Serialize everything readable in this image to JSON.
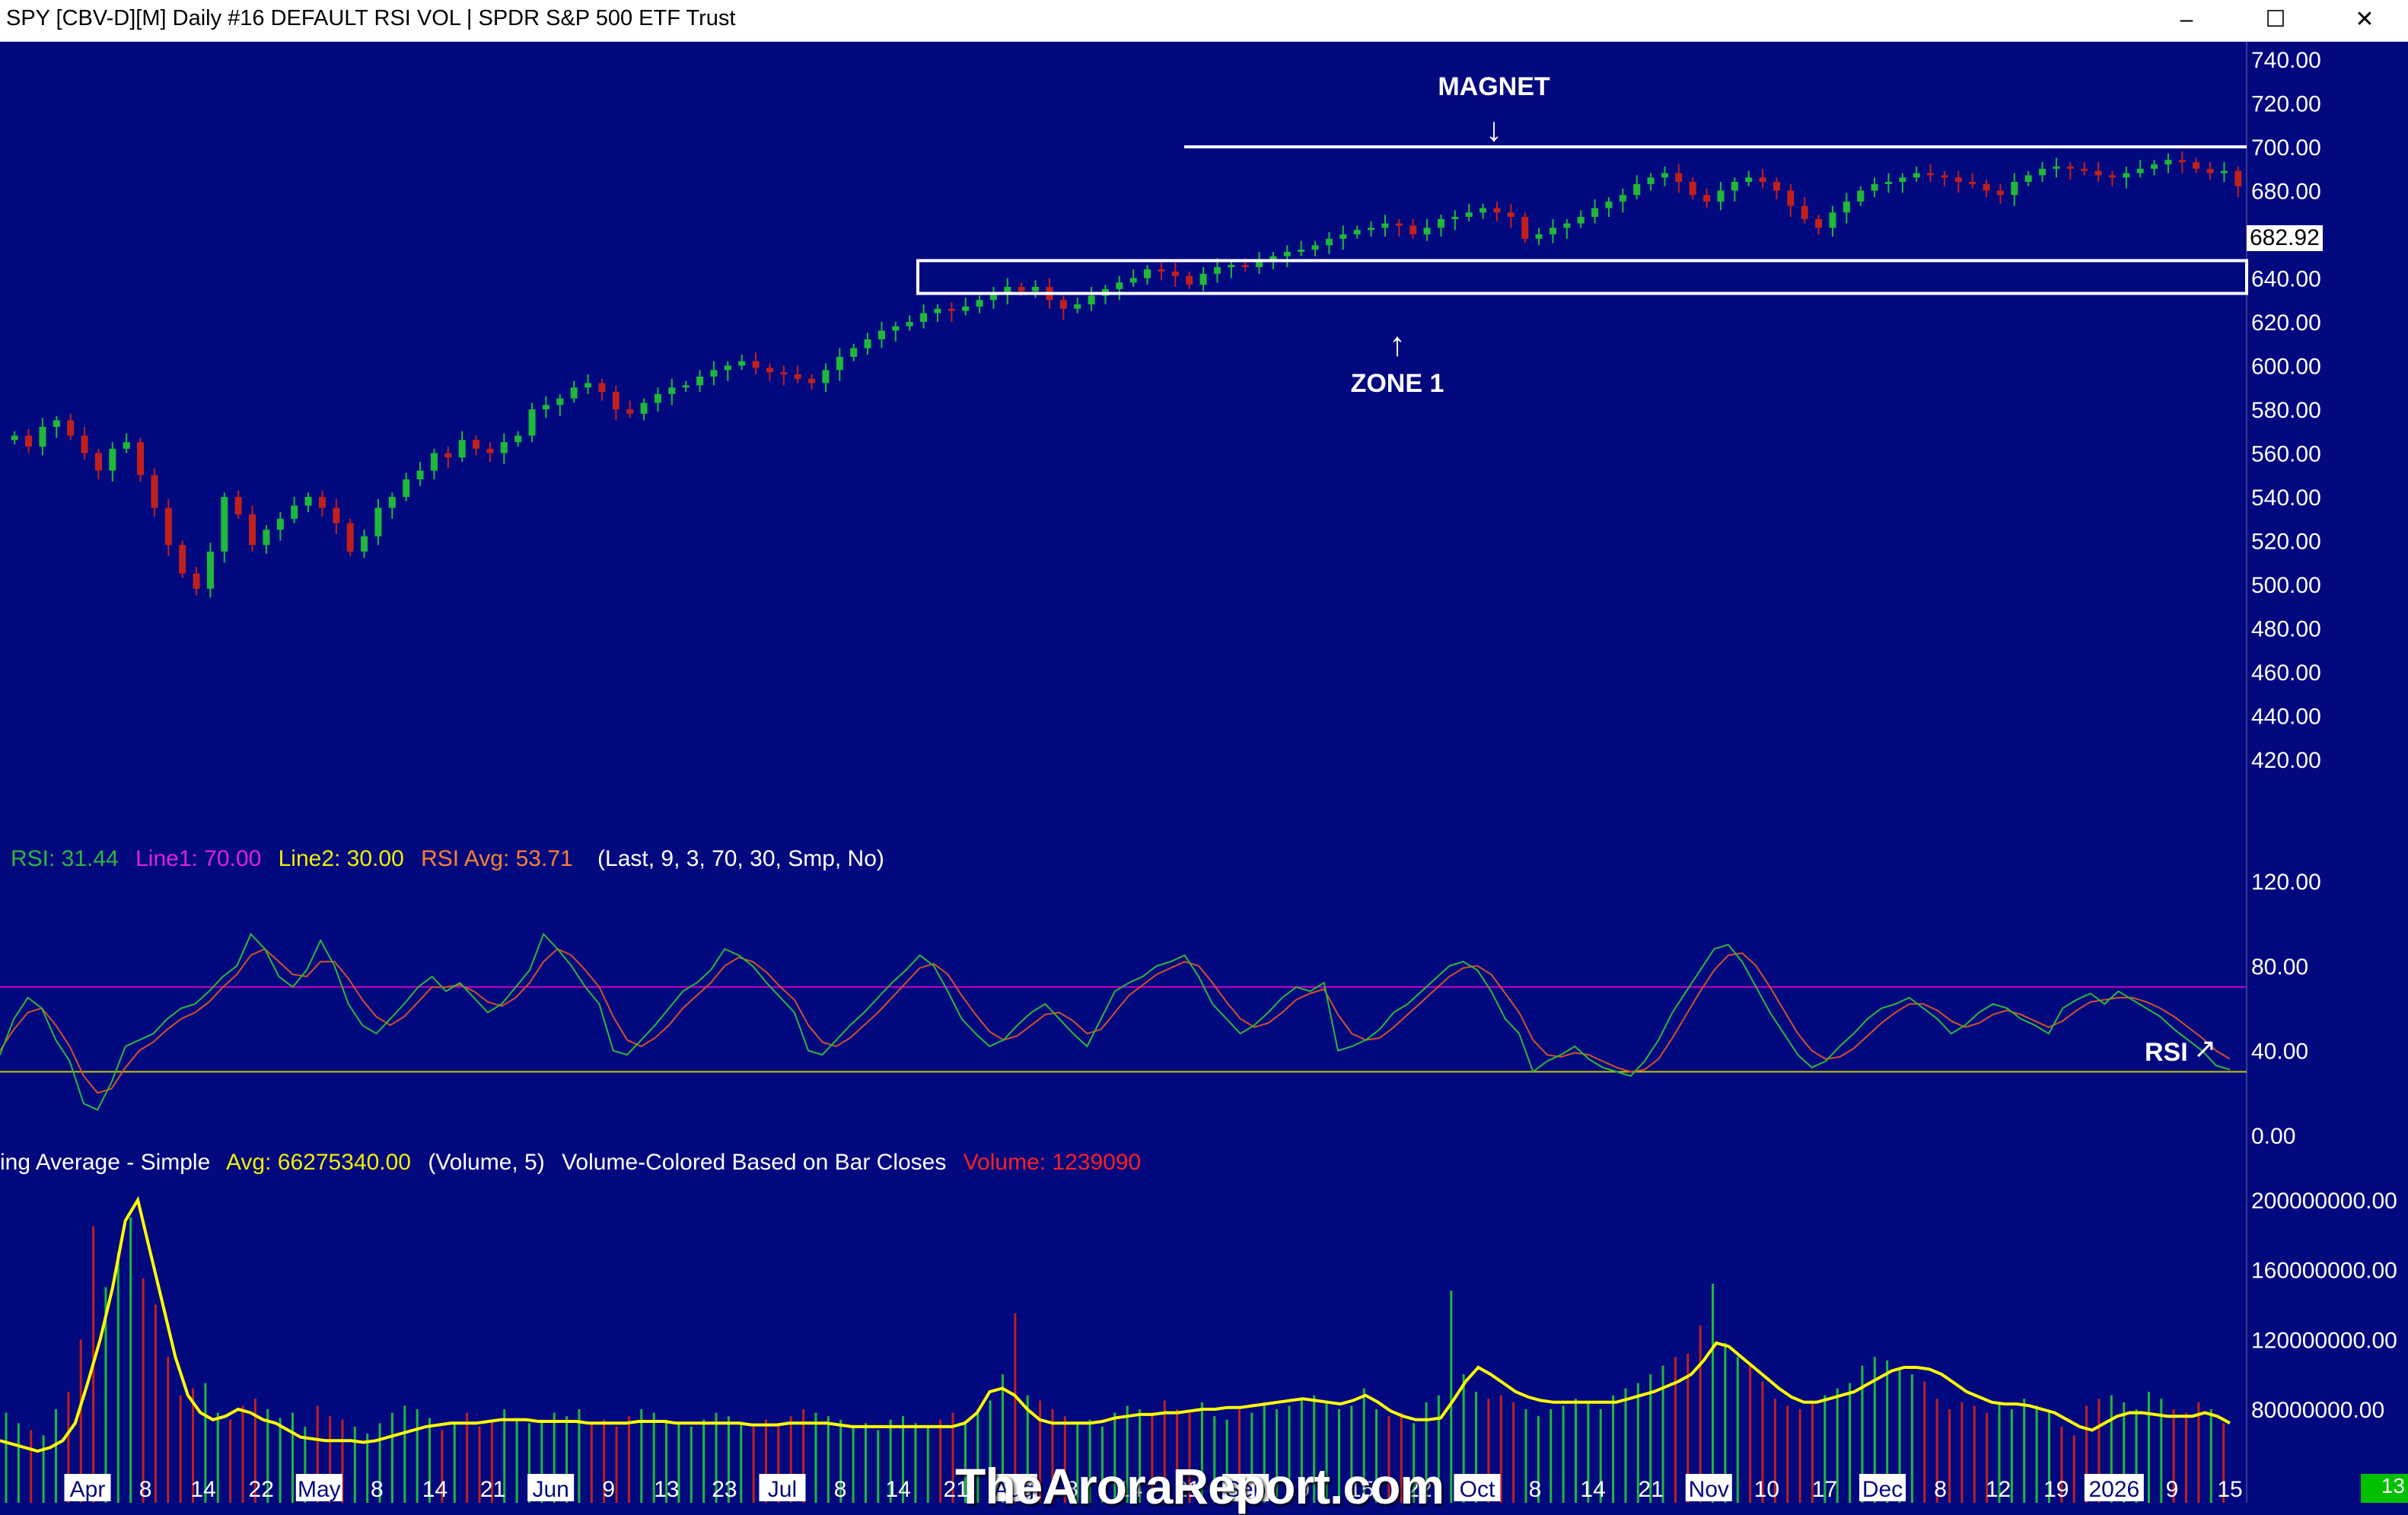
{
  "window": {
    "title": "SPY [CBV-D][M]  Daily #16 DEFAULT RSI VOL | SPDR S&P 500 ETF Trust",
    "buttons": {
      "minimize": "–",
      "maximize": "☐",
      "close": "✕"
    }
  },
  "colors": {
    "background": "#02097f",
    "up": "#1fb83a",
    "down": "#c0201c",
    "rsi": "#2db83a",
    "rsi_avg": "#d2502a",
    "line1": "#c000c0",
    "line2": "#c8c800",
    "vol_avg": "#ffff00"
  },
  "price_panel": {
    "last_price": "682.92",
    "annotations": {
      "magnet": "MAGNET",
      "zone1": "ZONE 1"
    }
  },
  "rsi_panel": {
    "legend": {
      "rsi": "RSI: 31.44",
      "line1": "Line1: 70.00",
      "line2": "Line2: 30.00",
      "avg": "RSI Avg: 53.71",
      "params": "(Last, 9, 3, 70, 30, Smp, No)"
    },
    "label": "RSI"
  },
  "volume_panel": {
    "legend": {
      "name": "ing Average - Simple",
      "avg": "Avg: 66275340.00",
      "params": "(Volume, 5)",
      "desc": "Volume-Colored Based on Bar Closes",
      "vol": "Volume: 1239090"
    }
  },
  "watermark": "TheAroraReport.com",
  "corner_label": "13",
  "chart_data": [
    {
      "type": "candlestick",
      "name": "SPY daily",
      "y_ticks": [
        "740.00",
        "720.00",
        "700.00",
        "680.00",
        "660.00",
        "640.00",
        "620.00",
        "600.00",
        "580.00",
        "560.00",
        "540.00",
        "520.00",
        "500.00",
        "480.00",
        "460.00",
        "440.00",
        "420.00"
      ],
      "ylim": [
        410,
        746
      ],
      "x_labels": [
        {
          "t": "Apr",
          "month": true
        },
        {
          "t": "8"
        },
        {
          "t": "14"
        },
        {
          "t": "22"
        },
        {
          "t": "May",
          "month": true
        },
        {
          "t": "8"
        },
        {
          "t": "14"
        },
        {
          "t": "21"
        },
        {
          "t": "Jun",
          "month": true
        },
        {
          "t": "9"
        },
        {
          "t": "13"
        },
        {
          "t": "23"
        },
        {
          "t": "Jul",
          "month": true
        },
        {
          "t": "8"
        },
        {
          "t": "14"
        },
        {
          "t": "21"
        },
        {
          "t": "Aug",
          "month": true
        },
        {
          "t": "8"
        },
        {
          "t": "14"
        },
        {
          "t": "21"
        },
        {
          "t": "Sep",
          "month": true
        },
        {
          "t": "9"
        },
        {
          "t": "15"
        },
        {
          "t": "22"
        },
        {
          "t": "Oct",
          "month": true
        },
        {
          "t": "8"
        },
        {
          "t": "14"
        },
        {
          "t": "21"
        },
        {
          "t": "Nov",
          "month": true
        },
        {
          "t": "10"
        },
        {
          "t": "17"
        },
        {
          "t": "Dec",
          "month": true
        },
        {
          "t": "8"
        },
        {
          "t": "12"
        },
        {
          "t": "19"
        },
        {
          "t": "2026",
          "month": true
        },
        {
          "t": "9"
        },
        {
          "t": "15"
        }
      ],
      "closes": [
        568,
        563,
        572,
        575,
        568,
        560,
        552,
        562,
        565,
        550,
        535,
        518,
        505,
        498,
        515,
        540,
        532,
        518,
        525,
        530,
        536,
        540,
        535,
        528,
        515,
        522,
        535,
        540,
        548,
        552,
        560,
        558,
        566,
        562,
        560,
        565,
        568,
        580,
        582,
        585,
        590,
        592,
        588,
        580,
        578,
        583,
        587,
        590,
        591,
        595,
        598,
        600,
        602,
        599,
        597,
        596,
        594,
        592,
        598,
        604,
        608,
        612,
        616,
        618,
        620,
        624,
        626,
        625,
        627,
        630,
        633,
        636,
        634,
        636,
        630,
        626,
        628,
        632,
        635,
        638,
        640,
        644,
        643,
        641,
        637,
        642,
        645,
        646,
        645,
        648,
        650,
        652,
        653,
        655,
        658,
        660,
        662,
        663,
        665,
        664,
        660,
        663,
        667,
        668,
        670,
        672,
        670,
        668,
        658,
        660,
        663,
        665,
        668,
        672,
        675,
        678,
        683,
        686,
        688,
        684,
        678,
        675,
        680,
        684,
        686,
        684,
        680,
        673,
        667,
        663,
        670,
        675,
        680,
        683,
        684,
        686,
        688,
        687,
        686,
        684,
        683,
        680,
        678,
        684,
        687,
        690,
        691,
        690,
        689,
        687,
        686,
        688,
        690,
        692,
        694,
        693,
        690,
        688,
        689,
        682
      ]
    },
    {
      "type": "line",
      "name": "RSI",
      "y_ticks": [
        "120.00",
        "80.00",
        "40.00",
        "0.00"
      ],
      "ylim": [
        0,
        120
      ],
      "lines": [
        70,
        30
      ],
      "series": [
        {
          "values": [
            38,
            55,
            65,
            60,
            45,
            35,
            15,
            12,
            25,
            42,
            45,
            48,
            55,
            60,
            62,
            68,
            75,
            80,
            95,
            88,
            75,
            70,
            78,
            92,
            80,
            62,
            52,
            48,
            55,
            62,
            70,
            75,
            68,
            72,
            65,
            58,
            62,
            70,
            78,
            95,
            88,
            80,
            70,
            62,
            40,
            38,
            45,
            52,
            60,
            68,
            72,
            78,
            88,
            85,
            80,
            72,
            65,
            58,
            40,
            38,
            45,
            52,
            58,
            65,
            72,
            78,
            85,
            80,
            68,
            55,
            48,
            42,
            45,
            52,
            58,
            62,
            55,
            48,
            42,
            55,
            68,
            72,
            75,
            80,
            82,
            85,
            75,
            62,
            55,
            48,
            52,
            58,
            65,
            70,
            68,
            72,
            40,
            42,
            45,
            50,
            58,
            62,
            68,
            74,
            80,
            82,
            78,
            68,
            55,
            48,
            30,
            35,
            38,
            42,
            36,
            32,
            30,
            28,
            35,
            45,
            58,
            68,
            78,
            88,
            90,
            82,
            70,
            58,
            48,
            38,
            32,
            35,
            42,
            48,
            55,
            60,
            62,
            65,
            60,
            55,
            48,
            52,
            58,
            62,
            60,
            55,
            52,
            48,
            60,
            64,
            67,
            62,
            68,
            64,
            60,
            56,
            50,
            45,
            40,
            33,
            31
          ]
        },
        {
          "values": [
            40,
            50,
            58,
            60,
            52,
            42,
            28,
            20,
            22,
            32,
            40,
            44,
            50,
            55,
            58,
            63,
            70,
            76,
            85,
            88,
            82,
            76,
            75,
            82,
            82,
            74,
            64,
            56,
            52,
            56,
            63,
            70,
            70,
            71,
            68,
            63,
            61,
            65,
            72,
            82,
            88,
            85,
            78,
            70,
            56,
            45,
            42,
            46,
            52,
            60,
            66,
            72,
            80,
            84,
            82,
            77,
            70,
            64,
            52,
            44,
            42,
            46,
            52,
            58,
            65,
            72,
            79,
            81,
            76,
            66,
            57,
            49,
            45,
            47,
            52,
            57,
            58,
            54,
            48,
            50,
            58,
            66,
            71,
            76,
            79,
            82,
            80,
            72,
            63,
            55,
            51,
            53,
            58,
            64,
            67,
            69,
            57,
            48,
            45,
            46,
            51,
            57,
            63,
            69,
            75,
            79,
            80,
            76,
            67,
            58,
            45,
            38,
            37,
            39,
            38,
            35,
            32,
            30,
            31,
            36,
            46,
            57,
            68,
            78,
            85,
            86,
            80,
            70,
            59,
            48,
            40,
            36,
            37,
            41,
            47,
            53,
            58,
            62,
            62,
            59,
            54,
            51,
            53,
            57,
            59,
            57,
            54,
            51,
            54,
            59,
            63,
            64,
            65,
            65,
            63,
            60,
            56,
            51,
            46,
            40,
            36
          ]
        }
      ]
    },
    {
      "type": "bar",
      "name": "Volume",
      "y_ticks": [
        "200000000.00",
        "160000000.00",
        "120000000.00",
        "80000000.00"
      ],
      "ylim": [
        50000000,
        210000000
      ],
      "values": [
        78,
        72,
        68,
        65,
        80,
        90,
        120,
        185,
        150,
        170,
        190,
        155,
        140,
        110,
        88,
        92,
        95,
        78,
        74,
        82,
        86,
        80,
        75,
        78,
        70,
        82,
        76,
        74,
        70,
        66,
        72,
        78,
        82,
        80,
        75,
        68,
        72,
        78,
        70,
        74,
        80,
        75,
        72,
        74,
        78,
        76,
        80,
        72,
        74,
        70,
        76,
        80,
        78,
        74,
        72,
        70,
        74,
        78,
        76,
        72,
        70,
        74,
        72,
        76,
        80,
        78,
        76,
        74,
        70,
        72,
        68,
        74,
        76,
        72,
        70,
        74,
        78,
        72,
        80,
        85,
        100,
        135,
        88,
        85,
        80,
        76,
        72,
        74,
        70,
        78,
        82,
        80,
        78,
        85,
        80,
        78,
        84,
        76,
        74,
        80,
        78,
        84,
        80,
        82,
        86,
        88,
        84,
        80,
        82,
        92,
        80,
        76,
        78,
        72,
        84,
        88,
        148,
        100,
        90,
        86,
        88,
        84,
        80,
        76,
        80,
        82,
        86,
        84,
        80,
        88,
        92,
        95,
        100,
        105,
        110,
        112,
        128,
        152,
        118,
        110,
        105,
        96,
        86,
        82,
        80,
        84,
        88,
        92,
        95,
        105,
        110,
        108,
        104,
        100,
        96,
        86,
        80,
        84,
        82,
        78,
        84,
        80,
        86,
        82,
        78,
        70,
        65,
        82,
        86,
        88,
        84,
        80,
        90,
        86,
        80,
        78,
        84,
        80,
        72
      ]
    },
    {
      "type": "line",
      "name": "Volume Avg",
      "values": [
        62,
        60,
        58,
        56,
        58,
        62,
        72,
        95,
        120,
        150,
        188,
        200,
        170,
        140,
        110,
        88,
        78,
        74,
        76,
        80,
        78,
        74,
        72,
        68,
        64,
        63,
        62,
        62,
        62,
        61,
        62,
        64,
        66,
        68,
        70,
        71,
        72,
        72,
        72,
        73,
        74,
        74,
        74,
        73,
        73,
        73,
        73,
        72,
        72,
        72,
        72,
        73,
        73,
        73,
        72,
        72,
        72,
        72,
        72,
        72,
        71,
        71,
        71,
        72,
        72,
        72,
        72,
        71,
        70,
        70,
        70,
        70,
        70,
        70,
        70,
        70,
        70,
        72,
        78,
        90,
        92,
        88,
        80,
        74,
        72,
        72,
        72,
        72,
        73,
        75,
        76,
        77,
        77,
        78,
        78,
        79,
        80,
        80,
        81,
        81,
        82,
        83,
        84,
        85,
        86,
        85,
        84,
        83,
        85,
        88,
        84,
        79,
        76,
        74,
        74,
        75,
        85,
        96,
        104,
        100,
        95,
        90,
        87,
        85,
        84,
        84,
        84,
        84,
        84,
        84,
        86,
        88,
        90,
        93,
        96,
        100,
        108,
        118,
        116,
        110,
        104,
        98,
        92,
        87,
        84,
        84,
        86,
        88,
        90,
        94,
        98,
        102,
        104,
        104,
        103,
        100,
        95,
        90,
        87,
        84,
        83,
        83,
        82,
        80,
        78,
        74,
        70,
        68,
        72,
        76,
        78,
        78,
        77,
        76,
        76,
        76,
        78,
        76,
        72
      ]
    }
  ]
}
